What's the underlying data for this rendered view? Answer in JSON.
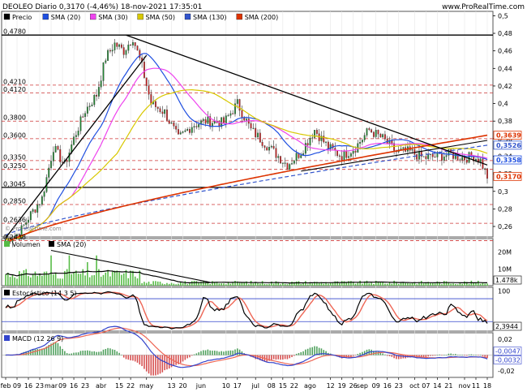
{
  "header": {
    "title": "DEOLEO Diario 0,3170 (-4,46%) 18-nov-2021 17:35:01",
    "site": "www.ProRealTime.com"
  },
  "watermark": "© ProRealTime.com",
  "colors": {
    "sma20": "#1f4fe0",
    "sma30": "#ee44ee",
    "sma50": "#d8c800",
    "sma130": "#3355cc",
    "sma200": "#dd3300",
    "up": "#228833",
    "down": "#cc2222",
    "volume": "#55bb44",
    "hline": "#cc3333"
  },
  "chart_data": [
    {
      "type": "candlestick",
      "panel": "price",
      "legend": [
        "Precio",
        "SMA (20)",
        "SMA (30)",
        "SMA (50)",
        "SMA (130)",
        "SMA (200)"
      ],
      "ylim": [
        0.248,
        0.505
      ],
      "y_ticks": [
        "0,5",
        "0,48",
        "0,46",
        "0,44",
        "0,42",
        "0,4",
        "0,38",
        "0,36",
        "0,34",
        "0,32",
        "0,3",
        "0,28",
        "0,26"
      ],
      "y_tick_values": [
        0.5,
        0.48,
        0.46,
        0.44,
        0.42,
        0.4,
        0.38,
        0.36,
        0.34,
        0.32,
        0.3,
        0.28,
        0.26
      ],
      "left_labels": [
        {
          "text": "0,4780",
          "value": 0.478
        },
        {
          "text": "0,4210",
          "value": 0.421
        },
        {
          "text": "0,4120",
          "value": 0.412
        },
        {
          "text": "0,3800",
          "value": 0.38
        },
        {
          "text": "0,3600",
          "value": 0.36
        },
        {
          "text": "0,3350",
          "value": 0.335
        },
        {
          "text": "0,3250",
          "value": 0.325
        },
        {
          "text": "0,3045",
          "value": 0.3045
        },
        {
          "text": "0,2850",
          "value": 0.285
        },
        {
          "text": "0,2636",
          "value": 0.2636
        },
        {
          "text": "0,2438",
          "value": 0.2438
        }
      ],
      "right_labels": [
        {
          "text": "0,3639",
          "value": 0.3639,
          "color": "#dd3300"
        },
        {
          "text": "0,3526",
          "value": 0.3526,
          "color": "#3355cc"
        },
        {
          "text": "0,3358",
          "value": 0.3358,
          "color": "#1f4fe0"
        },
        {
          "text": "0,3170",
          "value": 0.317,
          "color": "#dd3300"
        }
      ],
      "x_ticks": [
        "feb",
        "09",
        "16",
        "23",
        "mar",
        "09",
        "16",
        "23",
        "abr",
        "15",
        "22",
        "may",
        "13",
        "20",
        "jun",
        "10",
        "17",
        "jul",
        "08",
        "15",
        "22",
        "ago",
        "12",
        "19",
        "26",
        "sep",
        "09",
        "16",
        "23",
        "oct",
        "07",
        "14",
        "21",
        "nov",
        "11",
        "18"
      ],
      "x_tick_positions": [
        0,
        5,
        10,
        15,
        20,
        25,
        30,
        35,
        42,
        50,
        55,
        62,
        73,
        78,
        86,
        97,
        102,
        110,
        117,
        122,
        127,
        134,
        143,
        148,
        153,
        157,
        163,
        168,
        173,
        180,
        185,
        190,
        195,
        202,
        207,
        212
      ]
    },
    {
      "type": "bar",
      "panel": "volume",
      "legend": [
        "Volumen",
        "SMA (20)"
      ],
      "y_ticks": [
        "20M",
        "10M"
      ],
      "y_tick_values": [
        20,
        10
      ],
      "ylim": [
        0,
        28
      ],
      "last_label": "1.478k",
      "unit": "M"
    },
    {
      "type": "line",
      "panel": "stochastic",
      "legend": [
        "Estocástico (14 3 5)"
      ],
      "y_ticks": [
        "100"
      ],
      "y_tick_values": [
        100
      ],
      "ylim": [
        -5,
        110
      ],
      "bands": [
        80,
        20
      ],
      "last_label": "2,3944"
    },
    {
      "type": "line",
      "panel": "macd",
      "legend": [
        "MACD (12 26 9)"
      ],
      "y_ticks": [
        "0,02",
        "0",
        "-0,02"
      ],
      "y_tick_values": [
        0.02,
        0,
        -0.02
      ],
      "ylim": [
        -0.028,
        0.028
      ],
      "last_labels": [
        "-0,0047",
        "-0,0032"
      ]
    }
  ]
}
